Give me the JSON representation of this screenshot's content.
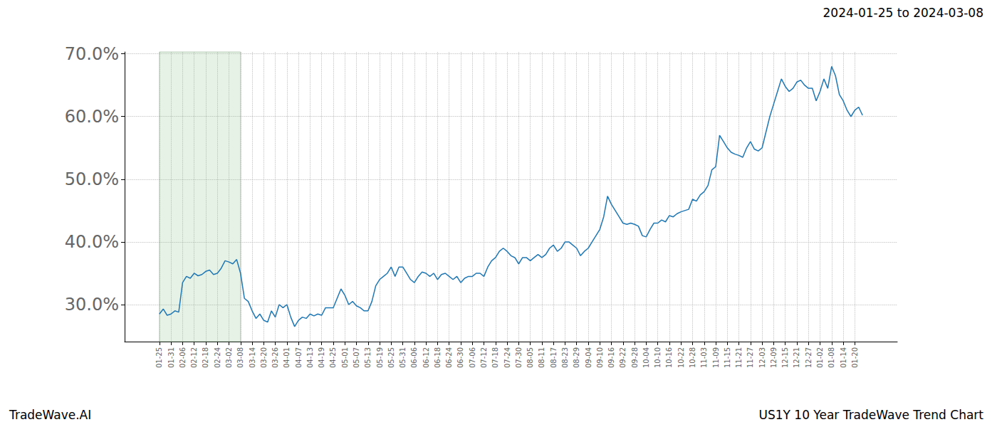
{
  "chart_data": {
    "type": "line",
    "title": "2024-01-25 to 2024-03-08",
    "footer_left": "TradeWave.AI",
    "footer_right": "US1Y 10 Year TradeWave Trend Chart",
    "highlight": [
      "01-25",
      "03-08"
    ],
    "color": "#1f77b4",
    "grid": true,
    "ylim": [
      24.1,
      70.3
    ],
    "yticks": [
      {
        "value": 30,
        "label": "30.0%"
      },
      {
        "value": 40,
        "label": "40.0%"
      },
      {
        "value": 50,
        "label": "50.0%"
      },
      {
        "value": 60,
        "label": "60.0%"
      },
      {
        "value": 70,
        "label": "70.0%"
      }
    ],
    "categories": [
      null,
      null,
      null,
      null,
      null,
      null,
      null,
      null,
      null,
      "01-25",
      null,
      null,
      "01-31",
      null,
      null,
      "02-06",
      null,
      null,
      "02-12",
      null,
      null,
      "02-18",
      null,
      null,
      "02-24",
      null,
      null,
      "03-02",
      null,
      null,
      "03-08",
      null,
      null,
      "03-14",
      null,
      null,
      "03-20",
      null,
      null,
      "03-26",
      null,
      null,
      "04-01",
      null,
      null,
      "04-07",
      null,
      null,
      "04-13",
      null,
      null,
      "04-19",
      null,
      null,
      "04-25",
      null,
      null,
      "05-01",
      null,
      null,
      "05-07",
      null,
      null,
      "05-13",
      null,
      null,
      "05-19",
      null,
      null,
      "05-25",
      null,
      null,
      "05-31",
      null,
      null,
      "06-06",
      null,
      null,
      "06-12",
      null,
      null,
      "06-18",
      null,
      null,
      "06-24",
      null,
      null,
      "06-30",
      null,
      null,
      "07-06",
      null,
      null,
      "07-12",
      null,
      null,
      "07-18",
      null,
      null,
      "07-24",
      null,
      null,
      "07-30",
      null,
      null,
      "08-05",
      null,
      null,
      "08-11",
      null,
      null,
      "08-17",
      null,
      null,
      "08-23",
      null,
      null,
      "08-29",
      null,
      null,
      "09-04",
      null,
      null,
      "09-10",
      null,
      null,
      "09-16",
      null,
      null,
      "09-22",
      null,
      null,
      "09-28",
      null,
      null,
      "10-04",
      null,
      null,
      "10-10",
      null,
      null,
      "10-16",
      null,
      null,
      "10-22",
      null,
      null,
      "10-28",
      null,
      null,
      "11-03",
      null,
      null,
      "11-09",
      null,
      null,
      "11-15",
      null,
      null,
      "11-21",
      null,
      null,
      "11-27",
      null,
      null,
      "12-03",
      null,
      null,
      "12-09",
      null,
      null,
      "12-15",
      null,
      null,
      "12-21",
      null,
      null,
      "12-27",
      null,
      null,
      "01-02",
      null,
      null,
      "01-08",
      null,
      null,
      "01-14",
      null,
      null,
      "01-20",
      null,
      null,
      null,
      null,
      null,
      null,
      null,
      null,
      null,
      null,
      null
    ],
    "values": [
      null,
      null,
      null,
      null,
      null,
      null,
      null,
      null,
      null,
      28.5,
      29.3,
      28.3,
      28.5,
      29,
      28.8,
      33.5,
      34.5,
      34.2,
      35,
      34.6,
      34.8,
      35.3,
      35.5,
      34.8,
      35,
      35.8,
      37,
      36.8,
      36.5,
      37.2,
      35,
      31,
      30.5,
      29,
      27.8,
      28.5,
      27.5,
      27.2,
      29,
      28,
      30,
      29.5,
      30,
      28,
      26.5,
      27.5,
      28,
      27.8,
      28.5,
      28.2,
      28.5,
      28.3,
      29.5,
      29.5,
      29.5,
      31,
      32.5,
      31.5,
      30,
      30.5,
      29.8,
      29.5,
      29,
      29,
      30.5,
      33,
      34,
      34.5,
      35,
      36,
      34.5,
      36,
      36,
      35,
      34,
      33.5,
      34.5,
      35.2,
      35,
      34.5,
      35,
      34,
      34.8,
      35,
      34.5,
      34,
      34.5,
      33.5,
      34.2,
      34.5,
      34.5,
      35,
      35,
      34.5,
      36,
      37,
      37.5,
      38.5,
      39,
      38.5,
      37.8,
      37.5,
      36.5,
      37.5,
      37.5,
      37,
      37.5,
      38,
      37.5,
      38,
      39,
      39.5,
      38.5,
      39,
      40,
      40,
      39.5,
      39,
      37.8,
      38.5,
      39,
      40,
      41,
      42,
      44,
      47.3,
      46,
      45,
      44,
      43,
      42.8,
      43,
      42.8,
      42.5,
      41,
      40.8,
      42,
      43,
      43,
      43.5,
      43.2,
      44.2,
      44,
      44.5,
      44.8,
      45,
      45.2,
      46.8,
      46.5,
      47.5,
      48,
      49,
      51.5,
      52,
      57,
      56,
      55,
      54.3,
      54,
      53.8,
      53.5,
      55,
      56,
      54.8,
      54.5,
      55,
      57.5,
      60,
      62,
      64,
      66,
      64.8,
      64,
      64.5,
      65.5,
      65.8,
      65,
      64.5,
      64.5,
      62.5,
      64,
      66,
      64.5,
      68,
      66.5,
      63.5,
      62.5,
      61,
      60,
      61,
      61.5,
      60.2,
      null,
      null,
      null,
      null,
      null,
      null,
      null,
      null,
      null
    ]
  }
}
